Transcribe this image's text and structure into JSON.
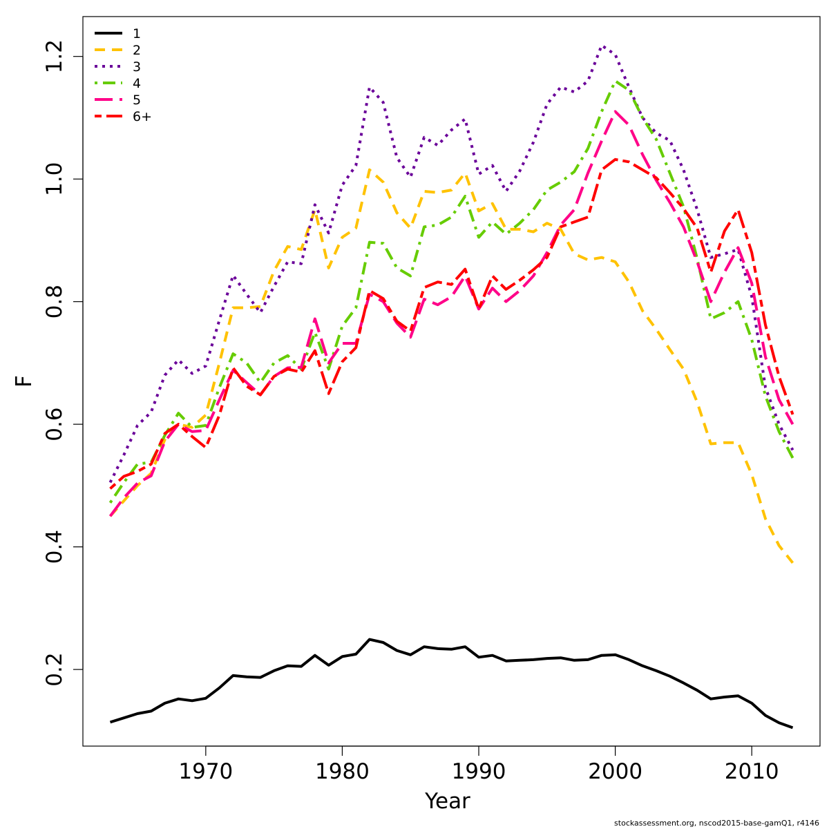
{
  "chart_data": {
    "type": "line",
    "title": "",
    "xlabel": "Year",
    "ylabel": "F",
    "xlim": [
      1961,
      2015
    ],
    "ylim": [
      0.075,
      1.265
    ],
    "xticks": [
      1970,
      1980,
      1990,
      2000,
      2010
    ],
    "yticks": [
      0.2,
      0.4,
      0.6,
      0.8,
      1.0,
      1.2
    ],
    "ytick_labels": [
      "0.2",
      "0.4",
      "0.6",
      "0.8",
      "1.0",
      "1.2"
    ],
    "grid": false,
    "legend_position": "top-left",
    "x": [
      1963,
      1964,
      1965,
      1966,
      1967,
      1968,
      1969,
      1970,
      1971,
      1972,
      1973,
      1974,
      1975,
      1976,
      1977,
      1978,
      1979,
      1980,
      1981,
      1982,
      1983,
      1984,
      1985,
      1986,
      1987,
      1988,
      1989,
      1990,
      1991,
      1992,
      1993,
      1994,
      1995,
      1996,
      1997,
      1998,
      1999,
      2000,
      2001,
      2002,
      2003,
      2004,
      2005,
      2006,
      2007,
      2008,
      2009,
      2010,
      2011,
      2012,
      2013
    ],
    "series": [
      {
        "name": "1",
        "color": "#000000",
        "style": "solid",
        "values": [
          0.114,
          0.121,
          0.128,
          0.132,
          0.145,
          0.152,
          0.149,
          0.153,
          0.17,
          0.19,
          0.188,
          0.187,
          0.198,
          0.206,
          0.205,
          0.223,
          0.207,
          0.221,
          0.225,
          0.249,
          0.244,
          0.231,
          0.224,
          0.237,
          0.234,
          0.233,
          0.237,
          0.22,
          0.223,
          0.214,
          0.215,
          0.216,
          0.218,
          0.219,
          0.215,
          0.216,
          0.223,
          0.224,
          0.216,
          0.206,
          0.198,
          0.189,
          0.178,
          0.166,
          0.152,
          0.155,
          0.157,
          0.145,
          0.125,
          0.113,
          0.105
        ]
      },
      {
        "name": "2",
        "color": "#FFC200",
        "style": "dashed",
        "values": [
          0.45,
          0.475,
          0.5,
          0.52,
          0.575,
          0.6,
          0.595,
          0.615,
          0.7,
          0.79,
          0.79,
          0.792,
          0.85,
          0.89,
          0.885,
          0.95,
          0.855,
          0.905,
          0.92,
          1.015,
          0.995,
          0.945,
          0.92,
          0.98,
          0.978,
          0.982,
          1.01,
          0.948,
          0.96,
          0.918,
          0.918,
          0.914,
          0.928,
          0.918,
          0.878,
          0.868,
          0.872,
          0.865,
          0.832,
          0.785,
          0.755,
          0.722,
          0.69,
          0.636,
          0.568,
          0.57,
          0.57,
          0.518,
          0.446,
          0.402,
          0.374
        ]
      },
      {
        "name": "3",
        "color": "#6A0099",
        "style": "dotted",
        "values": [
          0.505,
          0.55,
          0.598,
          0.62,
          0.68,
          0.705,
          0.683,
          0.695,
          0.77,
          0.843,
          0.812,
          0.782,
          0.825,
          0.865,
          0.862,
          0.958,
          0.912,
          0.99,
          1.022,
          1.15,
          1.125,
          1.035,
          1.003,
          1.068,
          1.055,
          1.08,
          1.098,
          1.008,
          1.022,
          0.98,
          1.013,
          1.06,
          1.122,
          1.15,
          1.142,
          1.16,
          1.218,
          1.203,
          1.15,
          1.1,
          1.075,
          1.063,
          1.015,
          0.95,
          0.872,
          0.878,
          0.885,
          0.808,
          0.66,
          0.6,
          0.558
        ]
      },
      {
        "name": "4",
        "color": "#66CC00",
        "style": "dotdash",
        "values": [
          0.472,
          0.505,
          0.535,
          0.538,
          0.582,
          0.618,
          0.595,
          0.598,
          0.66,
          0.715,
          0.7,
          0.668,
          0.7,
          0.712,
          0.69,
          0.75,
          0.69,
          0.76,
          0.79,
          0.897,
          0.895,
          0.855,
          0.842,
          0.922,
          0.925,
          0.938,
          0.972,
          0.905,
          0.93,
          0.91,
          0.928,
          0.95,
          0.982,
          0.995,
          1.012,
          1.05,
          1.11,
          1.16,
          1.145,
          1.1,
          1.065,
          1.01,
          0.955,
          0.87,
          0.772,
          0.782,
          0.8,
          0.738,
          0.646,
          0.588,
          0.545
        ]
      },
      {
        "name": "5",
        "color": "#FF0088",
        "style": "longdash",
        "values": [
          0.45,
          0.48,
          0.504,
          0.516,
          0.572,
          0.6,
          0.588,
          0.59,
          0.64,
          0.688,
          0.668,
          0.648,
          0.678,
          0.692,
          0.693,
          0.772,
          0.7,
          0.732,
          0.732,
          0.812,
          0.8,
          0.765,
          0.742,
          0.804,
          0.795,
          0.808,
          0.842,
          0.788,
          0.822,
          0.8,
          0.818,
          0.842,
          0.88,
          0.925,
          0.95,
          1.01,
          1.062,
          1.11,
          1.088,
          1.04,
          0.998,
          0.962,
          0.922,
          0.865,
          0.8,
          0.848,
          0.888,
          0.83,
          0.71,
          0.64,
          0.6
        ]
      },
      {
        "name": "6+",
        "color": "#FF0000",
        "style": "twodash",
        "values": [
          0.495,
          0.515,
          0.523,
          0.535,
          0.585,
          0.6,
          0.58,
          0.562,
          0.615,
          0.692,
          0.662,
          0.648,
          0.678,
          0.69,
          0.685,
          0.72,
          0.65,
          0.702,
          0.725,
          0.818,
          0.805,
          0.768,
          0.752,
          0.823,
          0.832,
          0.828,
          0.853,
          0.788,
          0.842,
          0.82,
          0.835,
          0.852,
          0.872,
          0.922,
          0.93,
          0.938,
          1.015,
          1.032,
          1.028,
          1.015,
          1.002,
          0.978,
          0.952,
          0.92,
          0.848,
          0.915,
          0.95,
          0.88,
          0.762,
          0.678,
          0.616
        ]
      }
    ]
  },
  "footer": "stockassessment.org, nscod2015-base-gamQ1, r4146"
}
